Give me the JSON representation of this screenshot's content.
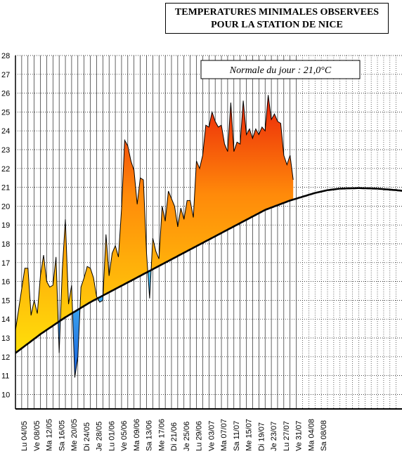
{
  "chart_data": {
    "type": "area",
    "title_lines": [
      "TEMPERATURES MINIMALES OBSERVEES",
      "POUR LA STATION DE NICE"
    ],
    "normal_label": "Normale du jour : 21,0°C",
    "ylim": [
      9.5,
      28
    ],
    "yticks": [
      10,
      11,
      12,
      13,
      14,
      15,
      16,
      17,
      18,
      19,
      20,
      21,
      22,
      23,
      24,
      25,
      26,
      27,
      28
    ],
    "x_range_days": [
      0,
      126
    ],
    "xtick_labels": [
      "Lu 04/05",
      "Ve 08/05",
      "Ma 12/05",
      "Sa 16/05",
      "Me 20/05",
      "Di 24/05",
      "Je 28/05",
      "Lu 01/06",
      "Ve 05/06",
      "Ma 09/06",
      "Sa 13/06",
      "Me 17/06",
      "Di 21/06",
      "Je 25/06",
      "Lu 29/06",
      "Ve 03/07",
      "Ma 07/07",
      "Sa 11/07",
      "Me 15/07",
      "Di 19/07",
      "Je 23/07",
      "Lu 27/07",
      "Ve 31/07",
      "Ma 04/08",
      "Sa 08/08"
    ],
    "normal_series": [
      [
        0,
        12.2
      ],
      [
        8,
        13.2
      ],
      [
        16,
        14.1
      ],
      [
        24,
        14.9
      ],
      [
        32,
        15.6
      ],
      [
        40,
        16.3
      ],
      [
        48,
        17.0
      ],
      [
        56,
        17.7
      ],
      [
        64,
        18.4
      ],
      [
        72,
        19.1
      ],
      [
        80,
        19.8
      ],
      [
        88,
        20.3
      ],
      [
        96,
        20.7
      ],
      [
        100,
        20.85
      ],
      [
        104,
        20.93
      ],
      [
        110,
        20.96
      ],
      [
        116,
        20.93
      ],
      [
        122,
        20.85
      ],
      [
        126,
        20.78
      ]
    ],
    "observed_series": [
      [
        0,
        13.4
      ],
      [
        3,
        16.7
      ],
      [
        4,
        16.7
      ],
      [
        5,
        14.2
      ],
      [
        6,
        15.0
      ],
      [
        7,
        14.3
      ],
      [
        8,
        16.3
      ],
      [
        9,
        17.4
      ],
      [
        10,
        16.0
      ],
      [
        11,
        15.7
      ],
      [
        12,
        15.8
      ],
      [
        13,
        17.3
      ],
      [
        14,
        12.2
      ],
      [
        15,
        16.6
      ],
      [
        16,
        19.3
      ],
      [
        17,
        14.8
      ],
      [
        18,
        15.8
      ],
      [
        19,
        10.9
      ],
      [
        20,
        12.0
      ],
      [
        21,
        15.7
      ],
      [
        22,
        16.2
      ],
      [
        23,
        16.8
      ],
      [
        24,
        16.7
      ],
      [
        25,
        16.2
      ],
      [
        26,
        15.2
      ],
      [
        27,
        14.9
      ],
      [
        28,
        15.0
      ],
      [
        29,
        18.5
      ],
      [
        30,
        16.3
      ],
      [
        31,
        17.5
      ],
      [
        32,
        17.9
      ],
      [
        33,
        17.3
      ],
      [
        34,
        19.9
      ],
      [
        35,
        23.5
      ],
      [
        36,
        23.2
      ],
      [
        37,
        22.4
      ],
      [
        38,
        21.9
      ],
      [
        39,
        20.1
      ],
      [
        40,
        21.5
      ],
      [
        41,
        21.4
      ],
      [
        42,
        17.5
      ],
      [
        43,
        15.1
      ],
      [
        44,
        18.3
      ],
      [
        45,
        17.6
      ],
      [
        46,
        17.2
      ],
      [
        47,
        20.0
      ],
      [
        48,
        19.2
      ],
      [
        49,
        20.8
      ],
      [
        50,
        20.4
      ],
      [
        51,
        20.0
      ],
      [
        52,
        18.9
      ],
      [
        53,
        19.9
      ],
      [
        54,
        19.3
      ],
      [
        55,
        20.3
      ],
      [
        56,
        20.3
      ],
      [
        57,
        19.4
      ],
      [
        58,
        22.4
      ],
      [
        59,
        22.0
      ],
      [
        60,
        22.7
      ],
      [
        61,
        24.3
      ],
      [
        62,
        24.2
      ],
      [
        63,
        25.0
      ],
      [
        64,
        24.5
      ],
      [
        65,
        24.2
      ],
      [
        66,
        24.3
      ],
      [
        67,
        23.3
      ],
      [
        68,
        22.9
      ],
      [
        69,
        25.5
      ],
      [
        70,
        22.9
      ],
      [
        71,
        23.4
      ],
      [
        72,
        23.3
      ],
      [
        73,
        25.6
      ],
      [
        74,
        23.8
      ],
      [
        75,
        24.1
      ],
      [
        76,
        23.6
      ],
      [
        77,
        24.1
      ],
      [
        78,
        23.8
      ],
      [
        79,
        24.2
      ],
      [
        80,
        24.0
      ],
      [
        81,
        25.9
      ],
      [
        82,
        24.6
      ],
      [
        83,
        24.9
      ],
      [
        84,
        24.5
      ],
      [
        85,
        24.4
      ],
      [
        86,
        22.7
      ],
      [
        87,
        22.2
      ],
      [
        88,
        22.7
      ],
      [
        89,
        21.4
      ]
    ]
  }
}
